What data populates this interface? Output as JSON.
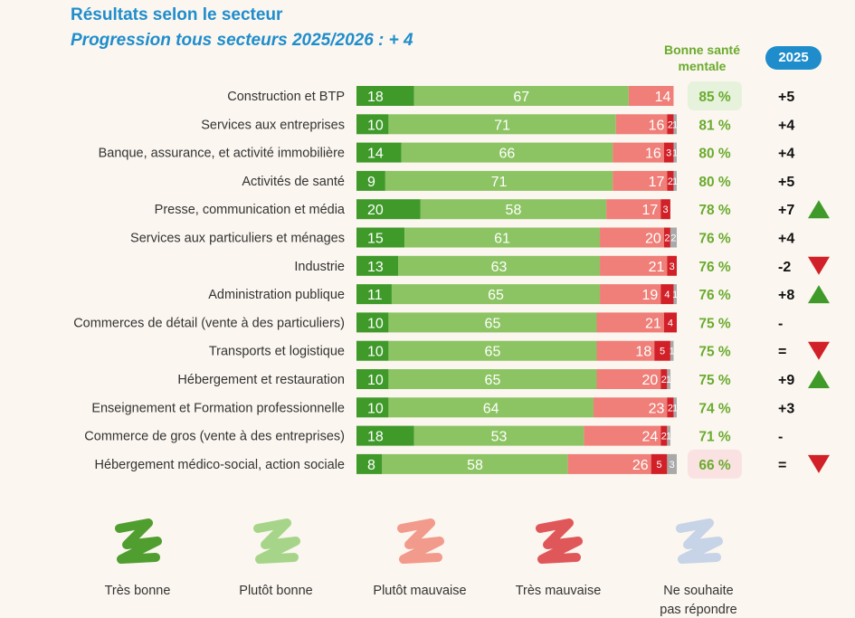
{
  "chart_data": {
    "type": "bar",
    "orientation": "horizontal",
    "stacked": true,
    "title": "Résultats selon le secteur",
    "subtitle": "Progression tous secteurs 2025/2026 : + 4",
    "column_headers": {
      "good_health": "Bonne santé mentale",
      "year_badge": "2025"
    },
    "series": [
      {
        "name": "Très bonne",
        "color": "#3f9a2a",
        "values": [
          18,
          10,
          14,
          9,
          20,
          15,
          13,
          11,
          10,
          10,
          10,
          10,
          18,
          8
        ]
      },
      {
        "name": "Plutôt  bonne",
        "color": "#8cc463",
        "values": [
          67,
          71,
          66,
          71,
          58,
          61,
          63,
          65,
          65,
          65,
          65,
          64,
          53,
          58
        ]
      },
      {
        "name": "Plutôt  mauvaise",
        "color": "#ef7f78",
        "values": [
          14,
          16,
          16,
          17,
          17,
          20,
          21,
          19,
          21,
          18,
          20,
          23,
          24,
          26
        ]
      },
      {
        "name": "Très mauvaise",
        "color": "#d12027",
        "values": [
          0,
          2,
          3,
          2,
          3,
          2,
          3,
          4,
          4,
          5,
          2,
          2,
          2,
          5
        ]
      },
      {
        "name": "Ne souhaite pas répondre",
        "color": "#a9a9a9",
        "values": [
          0,
          1,
          1,
          1,
          0,
          2,
          0,
          1,
          0,
          1,
          1,
          1,
          1,
          3
        ]
      }
    ],
    "categories": [
      "Construction et BTP",
      "Services aux entreprises",
      "Banque, assurance, et activité immobilière",
      "Activités de santé",
      "Presse, communication et média",
      "Services aux particuliers et ménages",
      "Industrie",
      "Administration publique",
      "Commerces de détail (vente à des particuliers)",
      "Transports et logistique",
      "Hébergement et restauration",
      "Enseignement et Formation professionnelle",
      "Commerce de gros (vente à des entreprises)",
      "Hébergement médico-social, action sociale"
    ],
    "good_health": [
      "85 %",
      "81 %",
      "80 %",
      "80 %",
      "78 %",
      "76 %",
      "76 %",
      "76 %",
      "75 %",
      "75 %",
      "75 %",
      "74 %",
      "71 %",
      "66 %"
    ],
    "good_health_highlight": [
      "max",
      "",
      "",
      "",
      "",
      "",
      "",
      "",
      "",
      "",
      "",
      "",
      "",
      "min"
    ],
    "evolution_2025": [
      "+5",
      "+4",
      "+4",
      "+5",
      "+7",
      "+4",
      "-2",
      "+8",
      "-",
      "=",
      "+9",
      "+3",
      "-",
      "="
    ],
    "trend": [
      "",
      "",
      "",
      "",
      "up",
      "",
      "down",
      "up",
      "",
      "down",
      "up",
      "",
      "",
      "down"
    ],
    "legend": [
      {
        "label": "Très bonne",
        "color": "#4f9e2f"
      },
      {
        "label": "Plutôt  bonne",
        "color": "#a6d58a"
      },
      {
        "label": "Plutôt  mauvaise",
        "color": "#f29a8b"
      },
      {
        "label": "Très mauvaise",
        "color": "#e0575a"
      },
      {
        "label": "Ne souhaite pas répondre",
        "lines": [
          "Ne souhaite",
          "pas répondre"
        ],
        "color": "#c7d3e6"
      }
    ],
    "colors": {
      "accent_blue": "#1f8dcc",
      "good_text": "#6aab2e",
      "highlight_max": "#e6f2dc",
      "highlight_min": "#fbe2e2",
      "arrow_up": "#3f9a2a",
      "arrow_down": "#d12027"
    }
  }
}
